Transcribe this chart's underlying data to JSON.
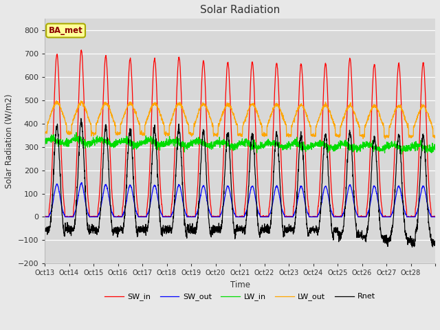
{
  "title": "Solar Radiation",
  "xlabel": "Time",
  "ylabel": "Solar Radiation (W/m2)",
  "ylim": [
    -200,
    850
  ],
  "yticks": [
    -200,
    -100,
    0,
    100,
    200,
    300,
    400,
    500,
    600,
    700,
    800
  ],
  "fig_bg_color": "#e8e8e8",
  "plot_bg_color": "#d8d8d8",
  "legend_label": "BA_met",
  "legend_box_facecolor": "#ffff99",
  "legend_box_edgecolor": "#aaaa00",
  "legend_text_color": "#8b0000",
  "series_colors": {
    "SW_in": "#ff0000",
    "SW_out": "#0000ff",
    "LW_in": "#00dd00",
    "LW_out": "#ffa500",
    "Rnet": "#000000"
  },
  "n_days": 16,
  "start_day": 13,
  "xtick_labels": [
    "Oct 13",
    "Oct 14",
    "Oct 15",
    "Oct 16",
    "Oct 17",
    "Oct 18",
    "Oct 19",
    "Oct 20",
    "Oct 21",
    "Oct 22",
    "Oct 23",
    "Oct 24",
    "Oct 25",
    "Oct 26",
    "Oct 27",
    "Oct 28"
  ],
  "points_per_day": 144,
  "grid_color": "#ffffff",
  "figsize": [
    6.4,
    4.8
  ],
  "dpi": 100
}
